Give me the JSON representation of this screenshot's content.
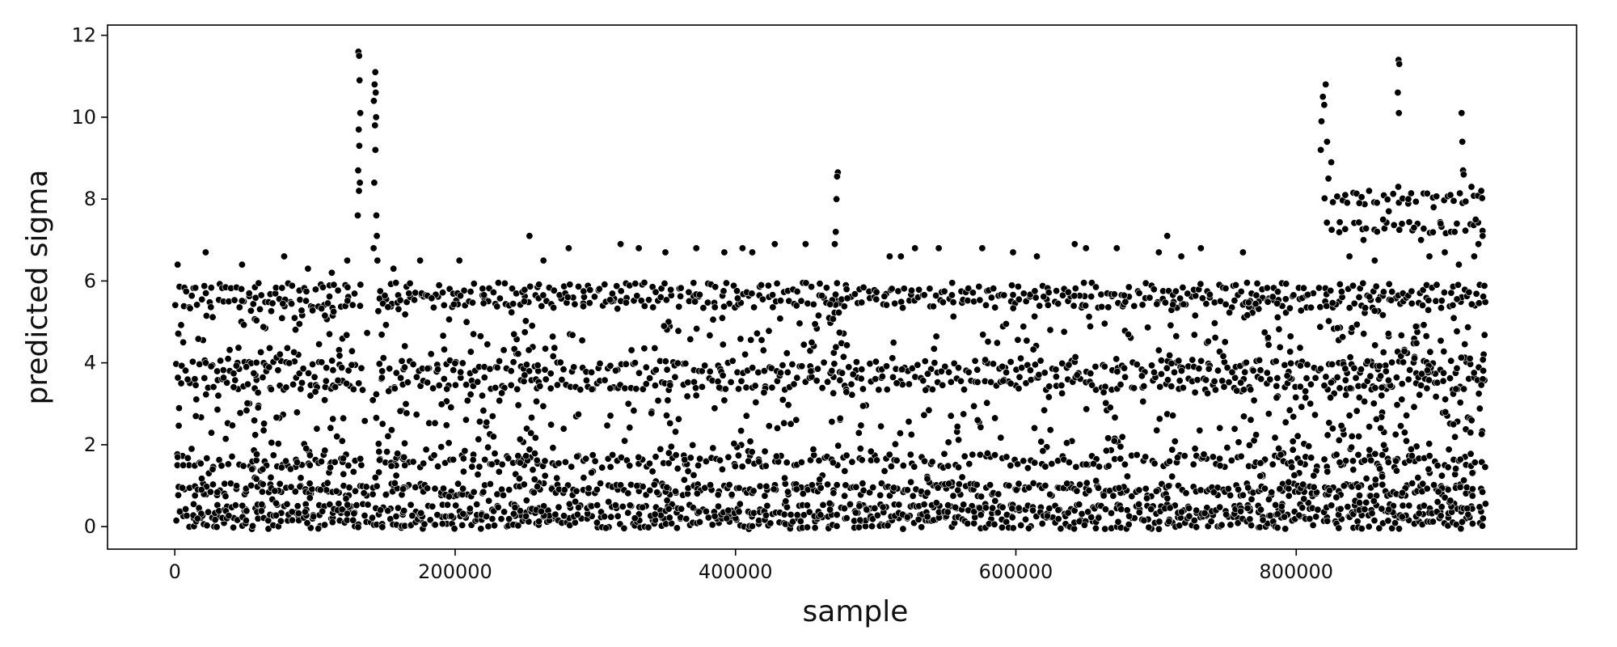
{
  "chart_data": {
    "type": "scatter",
    "xlabel": "sample",
    "ylabel": "predicted sigma",
    "xlim": [
      -48000,
      1000000
    ],
    "ylim": [
      -0.55,
      12.25
    ],
    "x_ticks": [
      0,
      200000,
      400000,
      600000,
      800000
    ],
    "y_ticks": [
      0,
      2,
      4,
      6,
      8,
      10,
      12
    ],
    "grid": false,
    "marker_color": "#000000",
    "marker_edge_color": "#ffffff",
    "x_range": [
      0,
      935000
    ],
    "level_bands": [
      {
        "sigma": 0.1,
        "x_from": 0,
        "x_to": 935000
      },
      {
        "sigma": 0.4,
        "x_from": 0,
        "x_to": 935000
      },
      {
        "sigma": 0.9,
        "x_from": 0,
        "x_to": 935000
      },
      {
        "sigma": 1.6,
        "x_from": 0,
        "x_to": 935000
      },
      {
        "sigma": 3.5,
        "x_from": 0,
        "x_to": 935000
      },
      {
        "sigma": 3.9,
        "x_from": 0,
        "x_to": 935000
      },
      {
        "sigma": 5.5,
        "x_from": 0,
        "x_to": 935000
      },
      {
        "sigma": 5.8,
        "x_from": 0,
        "x_to": 935000
      },
      {
        "sigma": 7.3,
        "x_from": 820000,
        "x_to": 935000
      },
      {
        "sigma": 8.0,
        "x_from": 820000,
        "x_to": 935000
      }
    ],
    "series": [
      {
        "values": [
          [
            131000,
            11.6
          ],
          [
            131500,
            11.5
          ],
          [
            131800,
            10.9
          ],
          [
            132300,
            10.1
          ],
          [
            131200,
            9.7
          ],
          [
            131600,
            9.3
          ],
          [
            130800,
            8.7
          ],
          [
            132000,
            8.4
          ],
          [
            131400,
            8.2
          ],
          [
            130500,
            7.6
          ],
          [
            143000,
            11.1
          ],
          [
            142500,
            10.8
          ],
          [
            143300,
            10.6
          ],
          [
            142000,
            10.4
          ],
          [
            143600,
            10.0
          ],
          [
            142800,
            9.8
          ],
          [
            143100,
            9.2
          ],
          [
            142300,
            8.4
          ],
          [
            143800,
            7.6
          ],
          [
            144100,
            7.1
          ],
          [
            141800,
            6.8
          ],
          [
            144500,
            6.5
          ],
          [
            473000,
            8.65
          ],
          [
            472500,
            8.55
          ],
          [
            472000,
            8.0
          ],
          [
            471500,
            7.2
          ],
          [
            470800,
            6.9
          ],
          [
            821000,
            10.8
          ],
          [
            819000,
            10.5
          ],
          [
            820000,
            10.3
          ],
          [
            818000,
            9.9
          ],
          [
            822000,
            9.4
          ],
          [
            817500,
            9.2
          ],
          [
            825000,
            8.9
          ],
          [
            823000,
            8.5
          ],
          [
            873000,
            11.4
          ],
          [
            873500,
            11.3
          ],
          [
            872500,
            10.6
          ],
          [
            873200,
            10.1
          ],
          [
            872800,
            8.3
          ],
          [
            918000,
            10.1
          ],
          [
            918500,
            9.4
          ],
          [
            919000,
            8.7
          ],
          [
            919500,
            8.6
          ],
          [
            253000,
            7.1
          ],
          [
            263000,
            6.5
          ],
          [
            281000,
            6.8
          ],
          [
            318000,
            6.9
          ],
          [
            331000,
            6.8
          ],
          [
            350000,
            6.7
          ],
          [
            372000,
            6.8
          ],
          [
            392000,
            6.7
          ],
          [
            405000,
            6.8
          ],
          [
            412000,
            6.7
          ],
          [
            428000,
            6.9
          ],
          [
            450000,
            6.9
          ],
          [
            510000,
            6.6
          ],
          [
            518000,
            6.6
          ],
          [
            528000,
            6.8
          ],
          [
            545000,
            6.8
          ],
          [
            576000,
            6.8
          ],
          [
            598000,
            6.7
          ],
          [
            615000,
            6.6
          ],
          [
            642000,
            6.9
          ],
          [
            650000,
            6.8
          ],
          [
            672000,
            6.8
          ],
          [
            708000,
            7.1
          ],
          [
            702000,
            6.7
          ],
          [
            718000,
            6.6
          ],
          [
            732000,
            6.8
          ],
          [
            762000,
            6.7
          ],
          [
            22000,
            6.7
          ],
          [
            48000,
            6.4
          ],
          [
            78000,
            6.6
          ],
          [
            95000,
            6.3
          ],
          [
            112000,
            6.2
          ],
          [
            123000,
            6.5
          ],
          [
            156000,
            6.3
          ],
          [
            175000,
            6.5
          ],
          [
            203000,
            6.5
          ],
          [
            835000,
            8.1
          ],
          [
            845000,
            7.9
          ],
          [
            852000,
            8.2
          ],
          [
            862000,
            7.5
          ],
          [
            880000,
            8.0
          ],
          [
            884000,
            7.3
          ],
          [
            889000,
            7.0
          ],
          [
            895000,
            6.6
          ],
          [
            903000,
            7.4
          ],
          [
            910000,
            8.1
          ],
          [
            925000,
            8.3
          ],
          [
            928000,
            7.5
          ],
          [
            930000,
            6.9
          ],
          [
            932000,
            8.2
          ],
          [
            927000,
            6.6
          ],
          [
            933000,
            7.1
          ],
          [
            838000,
            6.6
          ],
          [
            848000,
            7.0
          ],
          [
            856000,
            6.5
          ],
          [
            866000,
            7.7
          ],
          [
            898000,
            7.8
          ],
          [
            906000,
            6.7
          ],
          [
            913000,
            7.2
          ],
          [
            916000,
            6.4
          ],
          [
            2000,
            1.7
          ],
          [
            6000,
            1.5
          ],
          [
            12000,
            1.9
          ],
          [
            19000,
            0.9
          ],
          [
            27000,
            1.4
          ],
          [
            2000,
            6.4
          ],
          [
            6000,
            4.5
          ],
          [
            15000,
            2.7
          ],
          [
            31000,
            3.2
          ],
          [
            38000,
            4.1
          ]
        ]
      }
    ]
  }
}
